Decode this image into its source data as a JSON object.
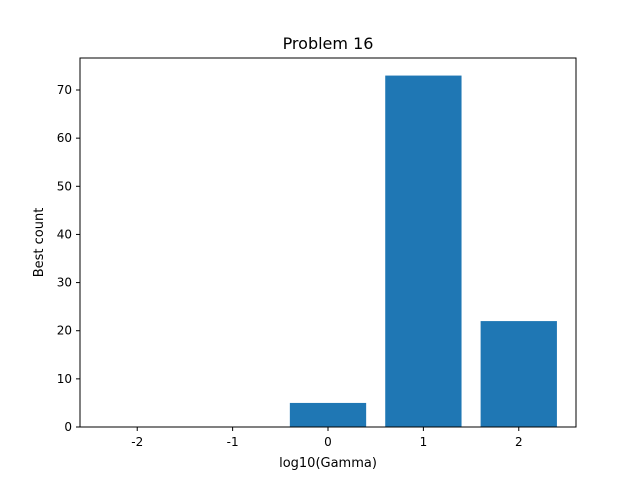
{
  "chart_data": {
    "type": "bar",
    "title": "Problem 16",
    "xlabel": "log10(Gamma)",
    "ylabel": "Best count",
    "categories": [
      "-2",
      "-1",
      "0",
      "1",
      "2"
    ],
    "values": [
      0,
      0,
      5,
      73,
      22
    ],
    "ylim": [
      0,
      76.65
    ],
    "yticks": [
      "0",
      "10",
      "20",
      "30",
      "40",
      "50",
      "60",
      "70"
    ],
    "grid": false,
    "legend": "none",
    "bar_color": "#1f77b4"
  }
}
